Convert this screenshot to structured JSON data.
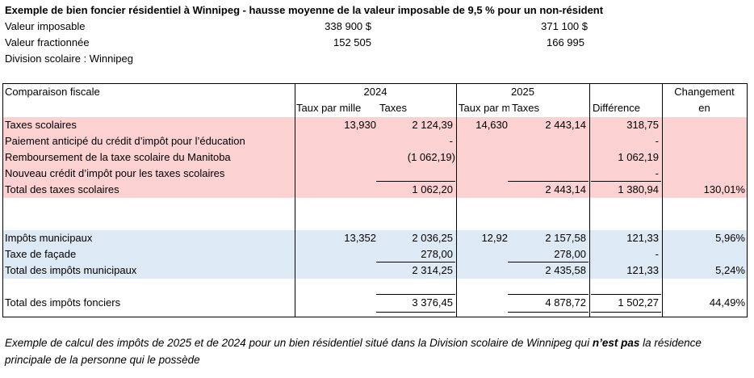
{
  "header": {
    "title": "Exemple de bien foncier résidentiel à Winnipeg - hausse moyenne de la valeur imposable de 9,5 % pour un non-résident",
    "rows": [
      {
        "label": "Valeur imposable",
        "v2024": "338 900 $",
        "v2025": "371 100 $"
      },
      {
        "label": "Valeur fractionnée",
        "v2024": "152 505",
        "v2025": "166 995"
      }
    ],
    "division": "Division scolaire : Winnipeg"
  },
  "table": {
    "col_comparison": "Comparaison fiscale",
    "year_2024": "2024",
    "year_2025": "2025",
    "rate_2024": "Taux par mille",
    "taxes_2024": "Taxes",
    "rate_2025": "Taux par m",
    "taxes_2025": "Taxes",
    "difference": "Différence",
    "change_1": "Changement",
    "change_2": "en",
    "rows": [
      {
        "label": "Taxes scolaires",
        "rate2024": "13,930",
        "tax2024": "2 124,39",
        "rate2025": "14,630",
        "tax2025": "2 443,14",
        "diff": "318,75",
        "change": ""
      },
      {
        "label": "Paiement anticipé du crédit d’impôt pour l’éducation",
        "rate2024": "",
        "tax2024": "-",
        "rate2025": "",
        "tax2025": "",
        "diff": "-",
        "change": ""
      },
      {
        "label": "Remboursement de la taxe scolaire du Manitoba",
        "rate2024": "",
        "tax2024": "(1 062,19)",
        "rate2025": "",
        "tax2025": "",
        "diff": "1 062,19",
        "change": ""
      },
      {
        "label": "Nouveau crédit d’impôt pour les taxes scolaires",
        "rate2024": "",
        "tax2024": "",
        "rate2025": "",
        "tax2025": "",
        "diff": "-",
        "change": ""
      },
      {
        "label": "Total des taxes scolaires",
        "rate2024": "",
        "tax2024": "1 062,20",
        "rate2025": "",
        "tax2025": "2 443,14",
        "diff": "1 380,94",
        "change": "130,01%"
      },
      {
        "label": "Impôts municipaux",
        "rate2024": "13,352",
        "tax2024": "2 036,25",
        "rate2025": "12,92",
        "tax2025": "2 157,58",
        "diff": "121,33",
        "change": "5,96%"
      },
      {
        "label": "Taxe de façade",
        "rate2024": "",
        "tax2024": "278,00",
        "rate2025": "",
        "tax2025": "278,00",
        "diff": "-",
        "change": ""
      },
      {
        "label": "Total des impôts municipaux",
        "rate2024": "",
        "tax2024": "2 314,25",
        "rate2025": "",
        "tax2025": "2 435,58",
        "diff": "121,33",
        "change": "5,24%"
      },
      {
        "label": "Total des impôts fonciers",
        "rate2024": "",
        "tax2024": "3 376,45",
        "rate2025": "",
        "tax2025": "4 878,72",
        "diff": "1 502,27",
        "change": "44,49%"
      }
    ]
  },
  "footnote": {
    "part1": "Exemple de calcul des impôts de 2025 et de 2024 pour un bien résidentiel situé dans la Division scolaire de Winnipeg qui ",
    "bold": "n’est pas",
    "part2": " la résidence principale de la personne qui le possède"
  },
  "colors": {
    "pink_band": "#fbd1d1",
    "blue_band": "#dde9f4"
  }
}
